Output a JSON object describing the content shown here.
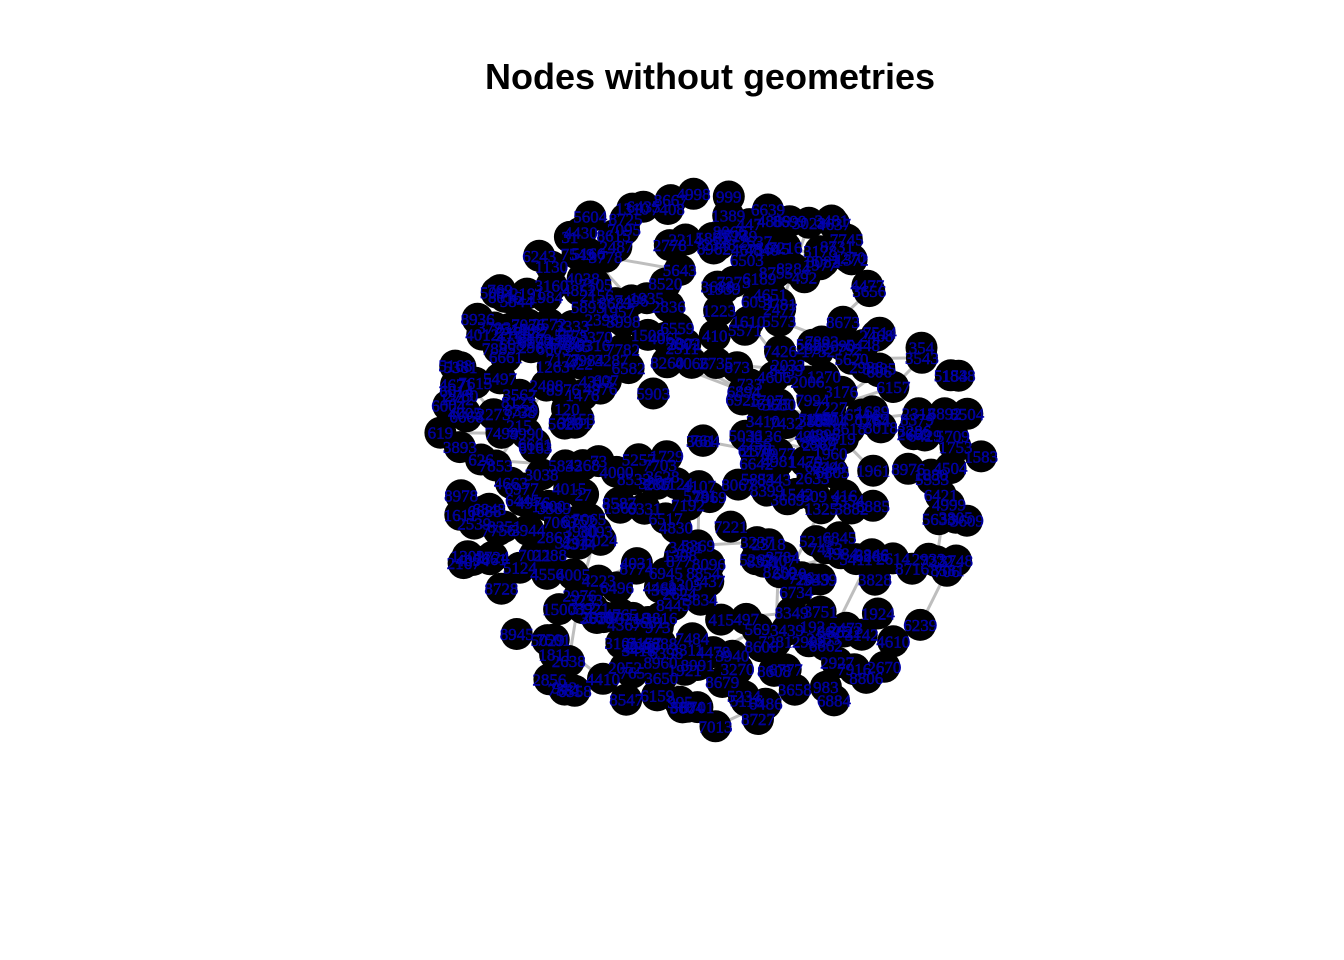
{
  "title": "Nodes without geometries",
  "graph": {
    "node_count": 450,
    "node_fill_color": "#000000",
    "label_color": "#00008B",
    "label_outline_color": "#0000CD",
    "edge_color": "#BEBEBE",
    "background_color": "#FFFFFF"
  }
}
